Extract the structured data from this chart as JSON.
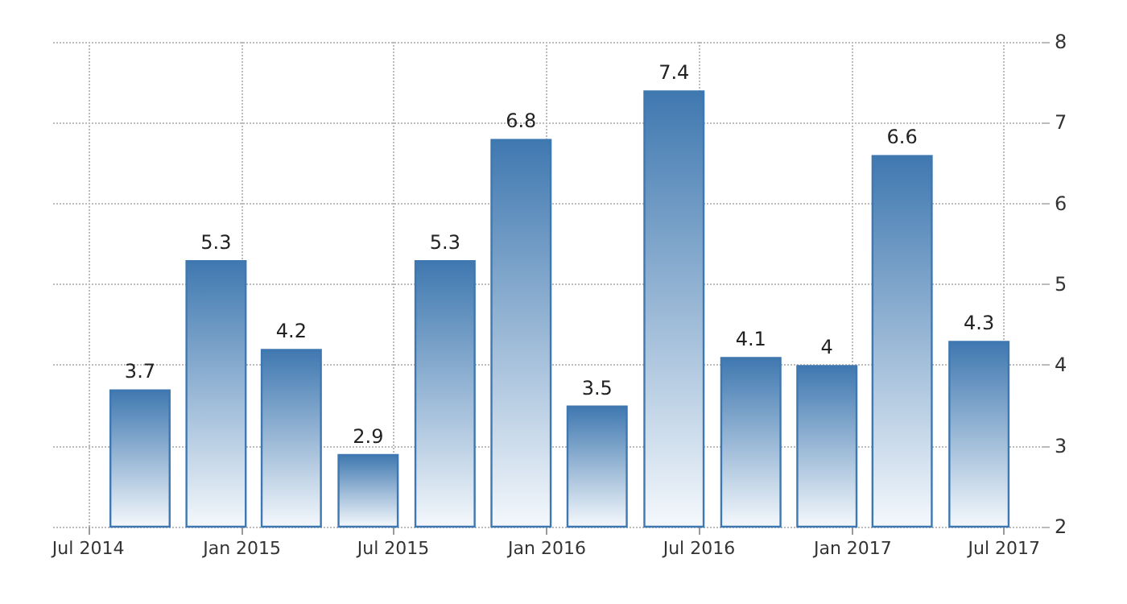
{
  "chart_data": {
    "type": "bar",
    "x": [
      "2014-09",
      "2014-12",
      "2015-03",
      "2015-06",
      "2015-09",
      "2015-12",
      "2016-03",
      "2016-06",
      "2016-09",
      "2016-12",
      "2017-03",
      "2017-06"
    ],
    "values": [
      3.7,
      5.3,
      4.2,
      2.9,
      5.3,
      6.8,
      3.5,
      7.4,
      4.1,
      4,
      6.6,
      4.3
    ],
    "color": "#3f78b0",
    "data_labels": true,
    "xlim": [
      "2014-05-20",
      "2017-08-15"
    ],
    "xticks": [
      {
        "value": "2014-07",
        "label": "Jul 2014"
      },
      {
        "value": "2015-01",
        "label": "Jan 2015"
      },
      {
        "value": "2015-07",
        "label": "Jul 2015"
      },
      {
        "value": "2016-01",
        "label": "Jan 2016"
      },
      {
        "value": "2016-07",
        "label": "Jul 2016"
      },
      {
        "value": "2017-01",
        "label": "Jan 2017"
      },
      {
        "value": "2017-07",
        "label": "Jul 2017"
      }
    ],
    "ylim": [
      2,
      8
    ],
    "yticks": [
      2,
      3,
      4,
      5,
      6,
      7,
      8
    ],
    "grid": true
  }
}
